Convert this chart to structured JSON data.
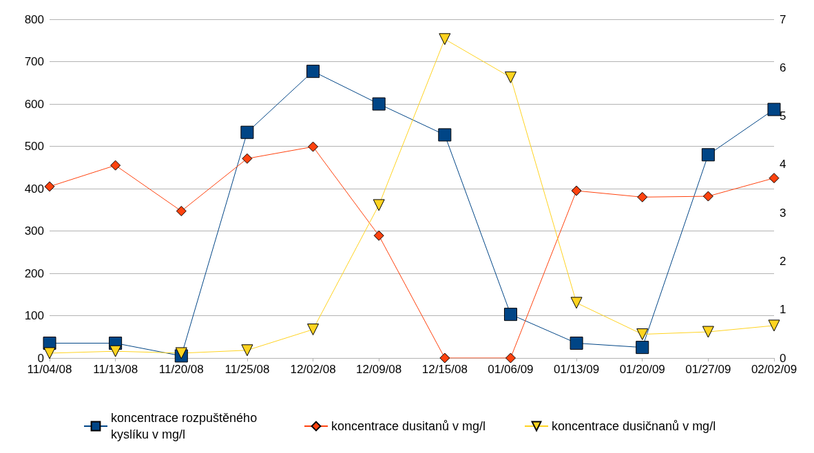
{
  "chart_data": {
    "type": "line",
    "categories": [
      "11/04/08",
      "11/13/08",
      "11/20/08",
      "11/25/08",
      "12/02/08",
      "12/09/08",
      "12/15/08",
      "01/06/09",
      "01/13/09",
      "01/20/09",
      "01/27/09",
      "02/02/09"
    ],
    "series": [
      {
        "name": "koncentrace rozpuštěného kyslíku v mg/l",
        "color": "#004586",
        "marker": "square",
        "values": [
          35,
          35,
          5,
          533,
          677,
          600,
          527,
          103,
          35,
          25,
          480,
          587
        ]
      },
      {
        "name": "koncentrace dusitanů v mg/l",
        "color": "#ff420e",
        "marker": "diamond",
        "values": [
          405,
          455,
          347,
          471,
          499,
          289,
          0,
          0,
          395,
          380,
          382,
          425
        ]
      },
      {
        "name": "koncentrace dusičnanů v mg/l",
        "color": "#ffd320",
        "marker": "triangle",
        "axis": "y2",
        "values": [
          0.1,
          0.14,
          0.1,
          0.16,
          0.59,
          3.16,
          6.59,
          5.8,
          1.14,
          0.49,
          0.54,
          0.67
        ]
      }
    ],
    "ylim": [
      0,
      800
    ],
    "yticks": [
      0,
      100,
      200,
      300,
      400,
      500,
      600,
      700,
      800
    ],
    "y2lim": [
      0,
      7
    ],
    "y2ticks": [
      0,
      1,
      2,
      3,
      4,
      5,
      6,
      7
    ],
    "grid": "y",
    "legend": "bottom"
  }
}
